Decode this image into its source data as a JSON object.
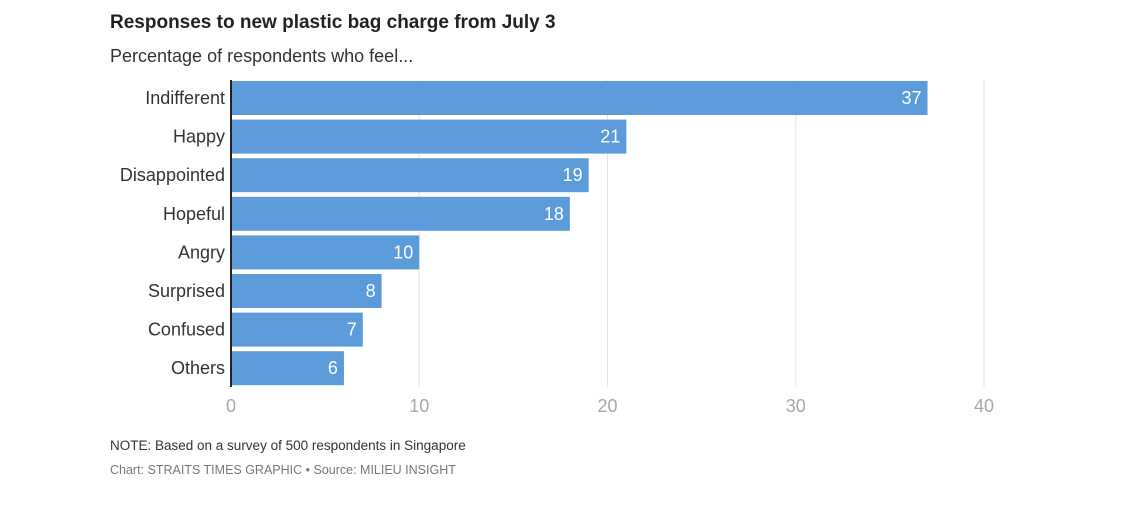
{
  "chart_data": {
    "type": "bar",
    "orientation": "horizontal",
    "title": "Responses to new plastic bag charge from July 3",
    "subtitle": "Percentage of respondents who feel...",
    "categories": [
      "Indifferent",
      "Happy",
      "Disappointed",
      "Hopeful",
      "Angry",
      "Surprised",
      "Confused",
      "Others"
    ],
    "values": [
      37,
      21,
      19,
      18,
      10,
      8,
      7,
      6
    ],
    "value_labels": [
      "37",
      "21",
      "19",
      "18",
      "10",
      "8",
      "7",
      "6"
    ],
    "xlim": [
      0,
      40
    ],
    "x_ticks": [
      0,
      10,
      20,
      30,
      40
    ],
    "x_tick_labels": [
      "0",
      "10",
      "20",
      "30",
      "40"
    ],
    "grid": true,
    "legend": "none",
    "bar_color": "#5b9bd9",
    "note": "NOTE: Based on a survey of 500 respondents in Singapore",
    "credit": "Chart: STRAITS TIMES GRAPHIC • Source: MILIEU INSIGHT"
  }
}
